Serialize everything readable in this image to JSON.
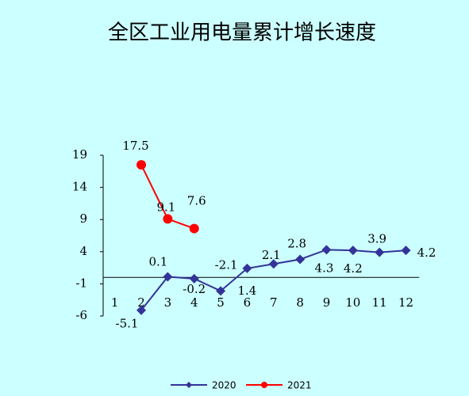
{
  "chart_data": {
    "type": "line",
    "title": "全区工业用电量累计增长速度",
    "categories": [
      "1",
      "2",
      "3",
      "4",
      "5",
      "6",
      "7",
      "8",
      "9",
      "10",
      "11",
      "12"
    ],
    "series": [
      {
        "name": "2020",
        "color": "#333399",
        "marker": "diamond",
        "label_color": "#000000",
        "values": [
          null,
          -5.1,
          0.1,
          -0.2,
          -2.1,
          1.4,
          2.1,
          2.8,
          4.3,
          4.2,
          3.9,
          4.2
        ]
      },
      {
        "name": "2021",
        "color": "#ff0000",
        "marker": "circle",
        "label_color": "#ff0000",
        "values": [
          null,
          17.5,
          9.1,
          7.6,
          null,
          null,
          null,
          null,
          null,
          null,
          null,
          null
        ]
      }
    ],
    "ylim": [
      -6,
      19
    ],
    "yticks": [
      19,
      14,
      9,
      4,
      -1,
      -6
    ],
    "grid": false,
    "legend": "bottom"
  }
}
